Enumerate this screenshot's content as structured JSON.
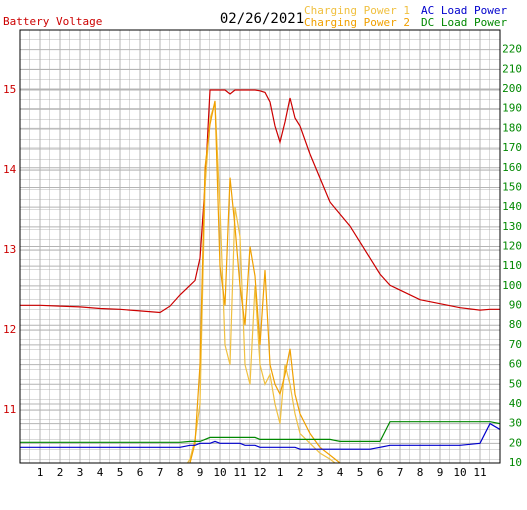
{
  "chart_data": {
    "type": "line",
    "title": "02/26/2021",
    "x": [
      0,
      1,
      2,
      3,
      4,
      5,
      6,
      7,
      7.5,
      8,
      8.5,
      8.75,
      9,
      9.25,
      9.5,
      9.75,
      10,
      10.25,
      10.5,
      10.75,
      11,
      11.25,
      11.5,
      11.75,
      12,
      12.25,
      12.5,
      12.75,
      13,
      13.25,
      13.5,
      13.75,
      14,
      14.5,
      15,
      15.5,
      16,
      16.5,
      17,
      17.5,
      18,
      18.5,
      19,
      20,
      21,
      22,
      23,
      23.5,
      24
    ],
    "xlim": [
      0,
      24
    ],
    "xticks": [
      1,
      2,
      3,
      4,
      5,
      6,
      7,
      8,
      9,
      10,
      11,
      12,
      {
        "value": 13,
        "label": "1"
      },
      {
        "value": 14,
        "label": "2"
      },
      {
        "value": 15,
        "label": "3"
      },
      {
        "value": 16,
        "label": "4"
      },
      {
        "value": 17,
        "label": "5"
      },
      {
        "value": 18,
        "label": "6"
      },
      {
        "value": 19,
        "label": "7"
      },
      {
        "value": 20,
        "label": "8"
      },
      {
        "value": 21,
        "label": "9"
      },
      {
        "value": 22,
        "label": "10"
      },
      {
        "value": 23,
        "label": "11"
      }
    ],
    "ylim": [
      10.34,
      15.75
    ],
    "yticks": [
      11,
      12,
      13,
      14,
      15
    ],
    "y2lim": [
      10,
      230
    ],
    "y2ticks": [
      10,
      20,
      30,
      40,
      50,
      60,
      70,
      80,
      90,
      100,
      110,
      120,
      130,
      140,
      150,
      160,
      170,
      180,
      190,
      200,
      210,
      220
    ],
    "grid": true,
    "y_color": "#cc0000",
    "y2_color": "#008800",
    "series": [
      {
        "name": "Battery Voltage",
        "color": "#cc0000",
        "values": [
          12.31,
          12.31,
          12.3,
          12.29,
          12.27,
          12.26,
          12.24,
          12.22,
          12.3,
          12.44,
          12.56,
          12.62,
          12.9,
          13.8,
          15.0,
          15.0,
          15.0,
          15.0,
          14.95,
          15.0,
          15.0,
          15.0,
          15.0,
          15.0,
          14.99,
          14.97,
          14.85,
          14.55,
          14.35,
          14.6,
          14.9,
          14.65,
          14.55,
          14.2,
          13.9,
          13.6,
          13.45,
          13.3,
          13.1,
          12.9,
          12.7,
          12.56,
          12.5,
          12.38,
          12.33,
          12.28,
          12.25,
          12.26,
          12.26
        ]
      },
      {
        "name": "Charging Power 1",
        "color": "#f0c040",
        "axis": "y2",
        "values": [
          0,
          0,
          0,
          0,
          0,
          0,
          0,
          0,
          1,
          4,
          12,
          22,
          40,
          150,
          185,
          193,
          140,
          70,
          60,
          140,
          125,
          60,
          50,
          100,
          60,
          50,
          55,
          40,
          30,
          60,
          50,
          35,
          25,
          20,
          15,
          12,
          8,
          4,
          0,
          0,
          0,
          0,
          0,
          0,
          0,
          0,
          0,
          0,
          0
        ]
      },
      {
        "name": "Charging Power 2",
        "color": "#f0a000",
        "axis": "y2",
        "values": [
          0,
          0,
          0,
          0,
          0,
          0,
          0,
          0,
          1,
          3,
          10,
          20,
          60,
          160,
          182,
          194,
          110,
          90,
          155,
          130,
          100,
          80,
          120,
          105,
          70,
          108,
          60,
          50,
          45,
          55,
          68,
          45,
          35,
          25,
          18,
          14,
          10,
          6,
          3,
          1,
          0,
          0,
          0,
          0,
          0,
          0,
          0,
          0,
          0
        ]
      },
      {
        "name": "AC Load Power",
        "color": "#0000cc",
        "axis": "y2",
        "values": [
          18,
          18,
          18,
          18,
          18,
          18,
          18,
          18,
          18,
          18,
          19,
          19,
          20,
          20,
          20,
          21,
          20,
          20,
          20,
          20,
          20,
          19,
          19,
          19,
          18,
          18,
          18,
          18,
          18,
          18,
          18,
          18,
          17,
          17,
          17,
          17,
          17,
          17,
          17,
          17,
          18,
          19,
          19,
          19,
          19,
          19,
          20,
          30,
          27
        ]
      },
      {
        "name": "DC Load Power",
        "color": "#008800",
        "axis": "y2",
        "values": [
          20.5,
          20.5,
          20.5,
          20.5,
          20.5,
          20.5,
          20.5,
          20.5,
          20.5,
          20.5,
          21,
          21,
          21,
          22,
          23,
          23,
          23,
          23,
          23,
          23,
          23,
          23,
          23,
          23,
          22,
          22,
          22,
          22,
          22,
          22,
          22,
          22,
          22,
          22,
          22,
          22,
          21,
          21,
          21,
          21,
          21,
          31,
          31,
          31,
          31,
          31,
          31,
          31,
          30
        ]
      }
    ]
  }
}
